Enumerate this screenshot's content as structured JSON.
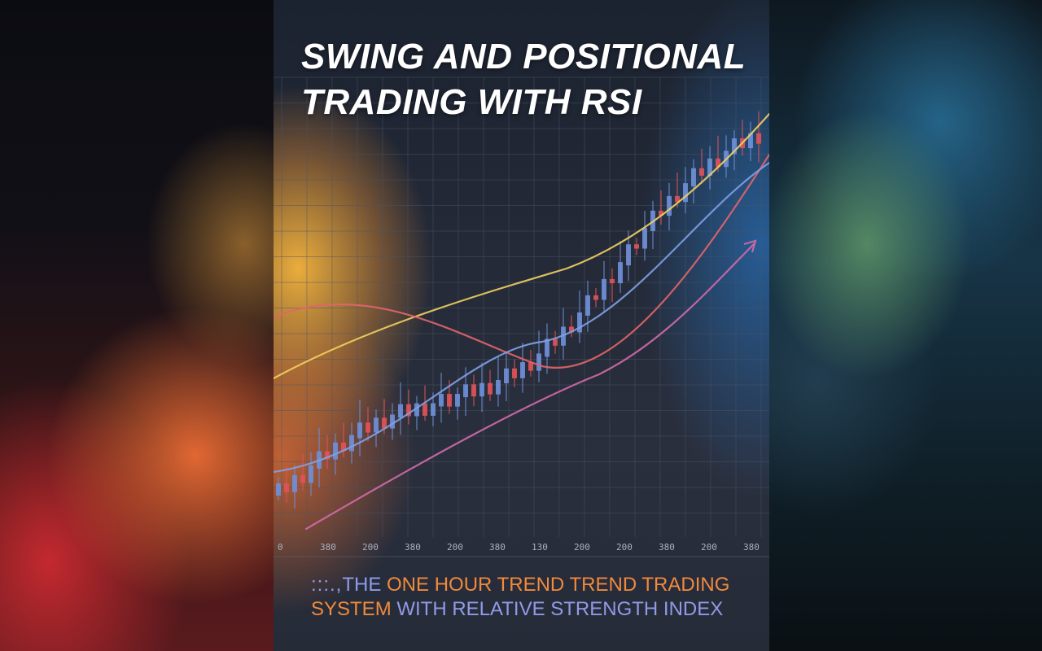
{
  "cover": {
    "title_line1": "SWING AND POSITIONAL",
    "title_line2": "TRADING WITH RSI",
    "subtitle_dots": ":::.,",
    "subtitle_part1": "THE",
    "subtitle_part2": "ONE HOUR TREND TREND TRADING",
    "subtitle_part3": "SYSTEM",
    "subtitle_part4": "WITH RELATIVE STRENGTH INDEX"
  },
  "chart_data": {
    "type": "candlestick",
    "x_tick_labels": [
      "0",
      "380",
      "200",
      "380",
      "200",
      "380",
      "130",
      "200",
      "200",
      "380",
      "200",
      "380"
    ],
    "colors": {
      "up_candle": "#6f8fd8",
      "down_candle": "#e0535a",
      "line_yellow": "#f0d060",
      "line_red": "#e2656a",
      "line_blue": "#7fa0e6",
      "line_pink": "#d26aa8",
      "grid": "#4a5568"
    }
  }
}
